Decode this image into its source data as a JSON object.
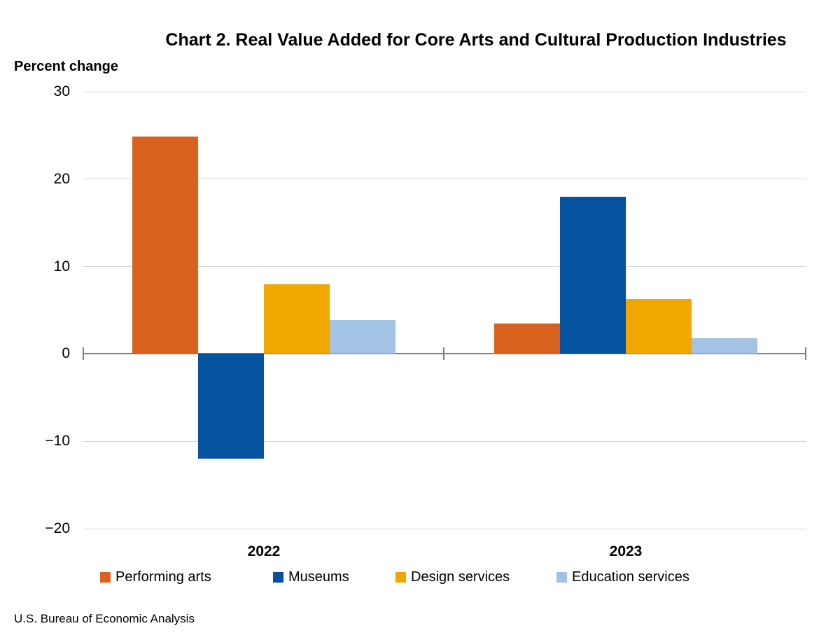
{
  "header": {
    "title": "Chart 2. Real Value Added for Core Arts and Cultural Production Industries",
    "y_axis_title": "Percent change"
  },
  "footer": {
    "source": "U.S. Bureau of Economic Analysis"
  },
  "colors": {
    "performing_arts": "#d9631e",
    "museums": "#05529f",
    "design_services": "#f0a800",
    "education_services": "#a2c2e6",
    "gridline": "#d6d6d6",
    "axis": "#808080"
  },
  "chart_data": {
    "type": "bar",
    "title": "Chart 2. Real Value Added for Core Arts and Cultural Production Industries",
    "ylabel": "Percent change",
    "categories": [
      "2022",
      "2023"
    ],
    "series": [
      {
        "name": "Performing arts",
        "color": "#d9631e",
        "values": [
          24.9,
          3.5
        ]
      },
      {
        "name": "Museums",
        "color": "#05529f",
        "values": [
          -12.0,
          18.0
        ]
      },
      {
        "name": "Design services",
        "color": "#f0a800",
        "values": [
          8.0,
          6.3
        ]
      },
      {
        "name": "Education services",
        "color": "#a2c2e6",
        "values": [
          3.9,
          1.8
        ]
      }
    ],
    "ylim": [
      -20,
      30
    ],
    "ytick_values": [
      30,
      20,
      10,
      0,
      -10,
      -20
    ],
    "ytick_labels": [
      "30",
      "20",
      "10",
      "0",
      "−10",
      "−20"
    ],
    "grid": true,
    "legend_position": "bottom"
  }
}
